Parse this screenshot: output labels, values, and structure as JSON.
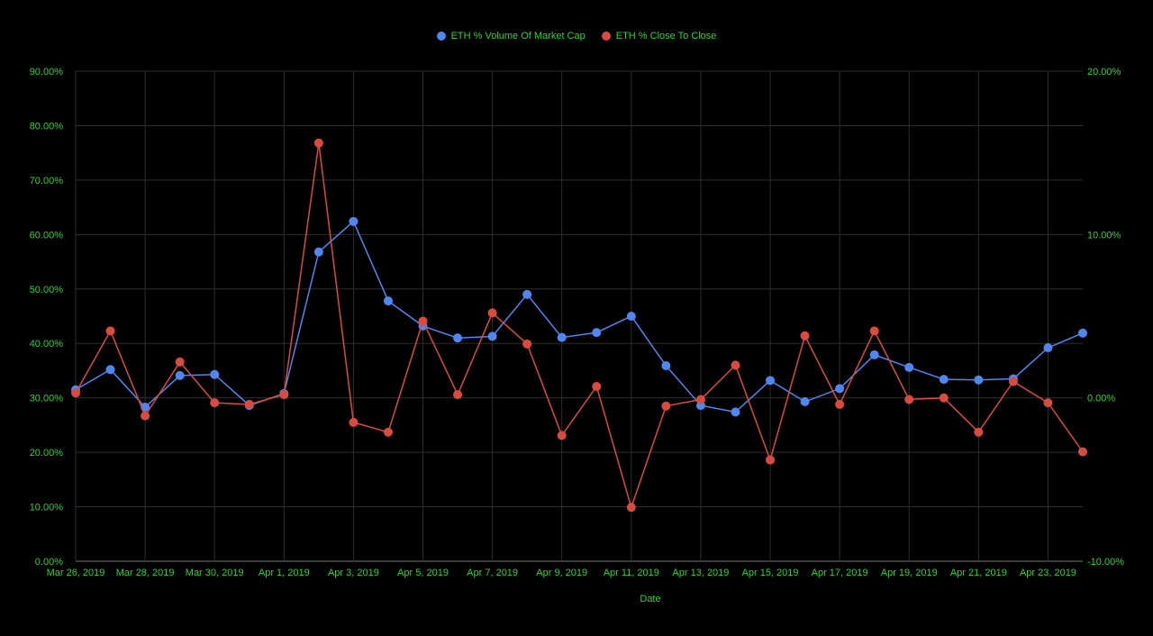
{
  "chart_data": {
    "type": "line",
    "title": "",
    "xlabel": "Date",
    "ylabel_left": "",
    "ylabel_right": "",
    "x": [
      "Mar 26, 2019",
      "Mar 27, 2019",
      "Mar 28, 2019",
      "Mar 29, 2019",
      "Mar 30, 2019",
      "Mar 31, 2019",
      "Apr 1, 2019",
      "Apr 2, 2019",
      "Apr 3, 2019",
      "Apr 4, 2019",
      "Apr 5, 2019",
      "Apr 6, 2019",
      "Apr 7, 2019",
      "Apr 8, 2019",
      "Apr 9, 2019",
      "Apr 10, 2019",
      "Apr 11, 2019",
      "Apr 12, 2019",
      "Apr 13, 2019",
      "Apr 14, 2019",
      "Apr 15, 2019",
      "Apr 16, 2019",
      "Apr 17, 2019",
      "Apr 18, 2019",
      "Apr 19, 2019",
      "Apr 20, 2019",
      "Apr 21, 2019",
      "Apr 22, 2019",
      "Apr 23, 2019",
      "Apr 24, 2019"
    ],
    "x_tick_labels": [
      "Mar 26, 2019",
      "Mar 28, 2019",
      "Mar 30, 2019",
      "Apr 1, 2019",
      "Apr 3, 2019",
      "Apr 5, 2019",
      "Apr 7, 2019",
      "Apr 9, 2019",
      "Apr 11, 2019",
      "Apr 13, 2019",
      "Apr 15, 2019",
      "Apr 17, 2019",
      "Apr 19, 2019",
      "Apr 21, 2019",
      "Apr 23, 2019"
    ],
    "y_left_ticks": [
      "0.00%",
      "10.00%",
      "20.00%",
      "30.00%",
      "40.00%",
      "50.00%",
      "60.00%",
      "70.00%",
      "80.00%",
      "90.00%"
    ],
    "y_left_range": [
      0,
      90
    ],
    "y_right_ticks": [
      "-10.00%",
      "0.00%",
      "10.00%",
      "20.00%"
    ],
    "y_right_range": [
      -10,
      20
    ],
    "grid": true,
    "legend_position": "top",
    "series": [
      {
        "name": "ETH % Volume Of Market Cap",
        "axis": "left",
        "color": "#4f86f0",
        "values": [
          31.5,
          35.2,
          28.3,
          34.1,
          34.3,
          28.6,
          30.8,
          56.8,
          62.4,
          47.8,
          43.2,
          41.0,
          41.3,
          49.0,
          41.1,
          42.0,
          45.0,
          35.9,
          28.6,
          27.4,
          33.2,
          29.3,
          31.7,
          37.9,
          35.6,
          33.4,
          33.3,
          33.5,
          39.2,
          41.9
        ]
      },
      {
        "name": "ETH % Close To Close",
        "axis": "right",
        "color": "#d94b3f",
        "values": [
          0.3,
          4.1,
          -1.1,
          2.2,
          -0.3,
          -0.4,
          0.2,
          15.6,
          -1.5,
          -2.1,
          4.7,
          0.2,
          5.2,
          3.3,
          -2.3,
          0.7,
          -6.7,
          -0.5,
          -0.1,
          2.0,
          -3.8,
          3.8,
          -0.4,
          4.1,
          -0.1,
          0.0,
          -2.1,
          1.0,
          -0.3,
          -3.3
        ]
      }
    ]
  },
  "colors": {
    "background": "#000000",
    "text": "#2fd22f",
    "grid": "#2e2e2e"
  }
}
